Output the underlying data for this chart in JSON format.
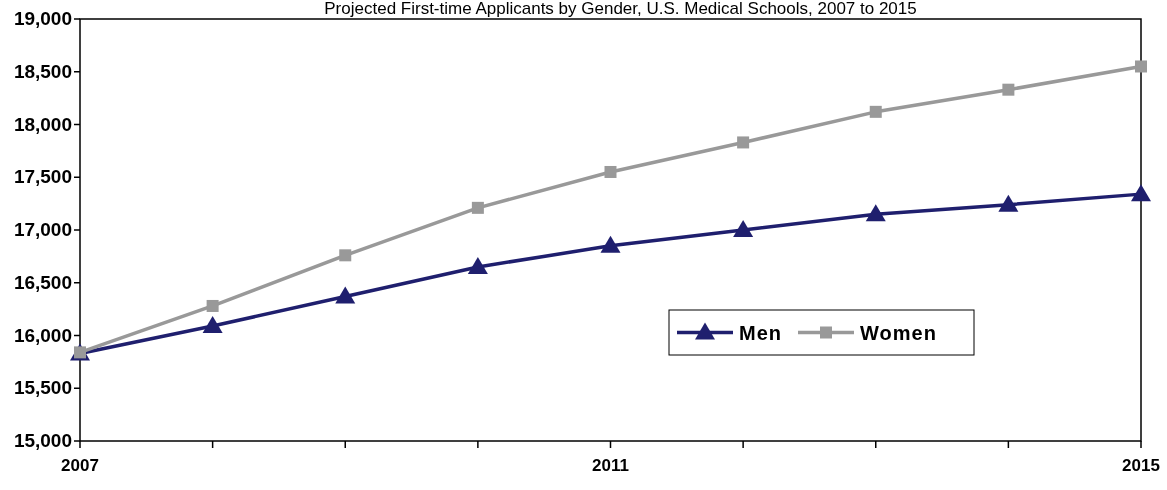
{
  "chart_data": {
    "type": "line",
    "title": "Projected First-time Applicants by Gender, U.S. Medical Schools, 2007 to 2015",
    "x": [
      2007,
      2008,
      2009,
      2010,
      2011,
      2012,
      2013,
      2014,
      2015
    ],
    "series": [
      {
        "name": "Men",
        "color": "#1f1f6e",
        "marker": "triangle",
        "values": [
          15830,
          16090,
          16370,
          16650,
          16850,
          17000,
          17150,
          17240,
          17340
        ]
      },
      {
        "name": "Women",
        "color": "#999999",
        "marker": "square",
        "values": [
          15840,
          16280,
          16760,
          17210,
          17550,
          17830,
          18120,
          18330,
          18550
        ]
      }
    ],
    "xlim": [
      2007,
      2015
    ],
    "xticks": [
      2007,
      {
        "value": 2008,
        "label": null
      },
      {
        "value": 2009,
        "label": null
      },
      {
        "value": 2010,
        "label": null
      },
      2011,
      {
        "value": 2012,
        "label": null
      },
      {
        "value": 2013,
        "label": null
      },
      {
        "value": 2014,
        "label": null
      },
      2015
    ],
    "ylim": [
      15000,
      19000
    ],
    "yticks": [
      {
        "value": 15000,
        "label": "15,000"
      },
      {
        "value": 15500,
        "label": "15,500"
      },
      {
        "value": 16000,
        "label": "16,000"
      },
      {
        "value": 16500,
        "label": "16,500"
      },
      {
        "value": 17000,
        "label": "17,000"
      },
      {
        "value": 17500,
        "label": "17,500"
      },
      {
        "value": 18000,
        "label": "18,000"
      },
      {
        "value": 18500,
        "label": "18,500"
      },
      {
        "value": 19000,
        "label": "19,000"
      }
    ],
    "grid": false,
    "legend": "right"
  }
}
